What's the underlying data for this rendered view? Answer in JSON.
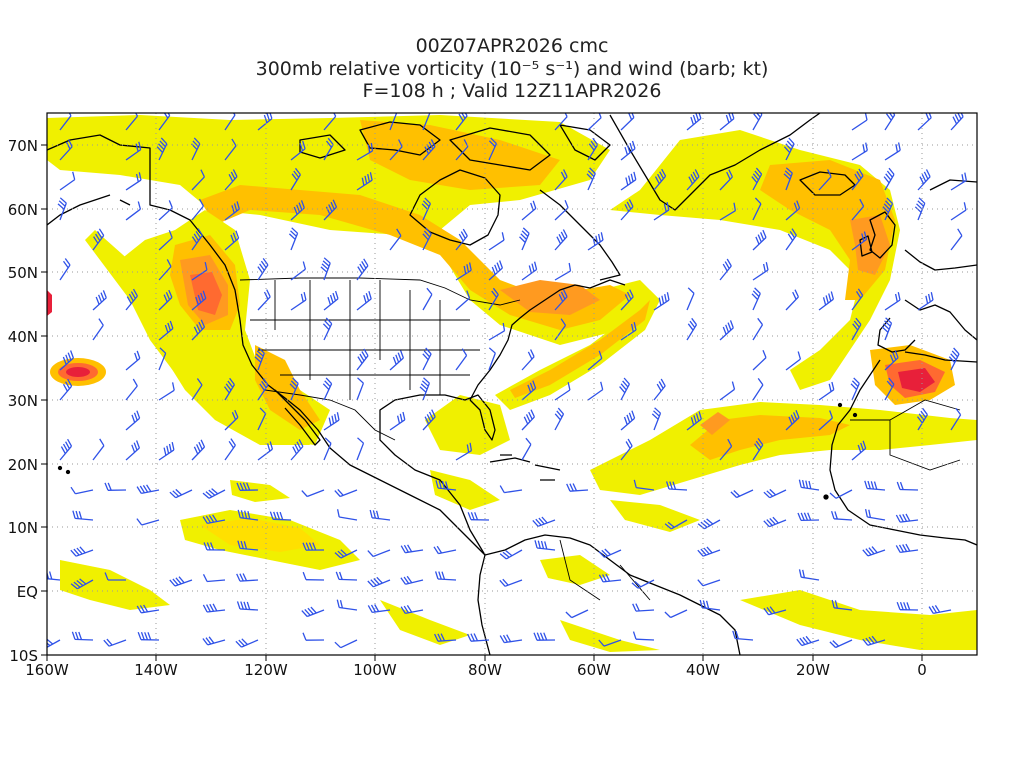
{
  "title": {
    "line1": "00Z07APR2026 cmc",
    "line2": "300mb relative vorticity (10⁻⁵ s⁻¹) and wind (barb; kt)",
    "line3": "F=108 h ; Valid 12Z11APR2026"
  },
  "axes": {
    "lon_ticks": [
      "160W",
      "140W",
      "120W",
      "100W",
      "80W",
      "60W",
      "40W",
      "20W",
      "0"
    ],
    "lat_ticks": [
      "70N",
      "60N",
      "50N",
      "40N",
      "30N",
      "20N",
      "10N",
      "EQ",
      "10S"
    ]
  },
  "colors": {
    "light": "#f0f000",
    "yellow": "#ffe000",
    "gold": "#ffc000",
    "orange": "#ff9a20",
    "darkorange": "#ff6a30",
    "red": "#e8203a",
    "barb": "#2f52e8",
    "coast": "#000000",
    "grid": "#9a9a9a"
  },
  "icons": {
    "wind_barb": "wind-barb-icon"
  }
}
